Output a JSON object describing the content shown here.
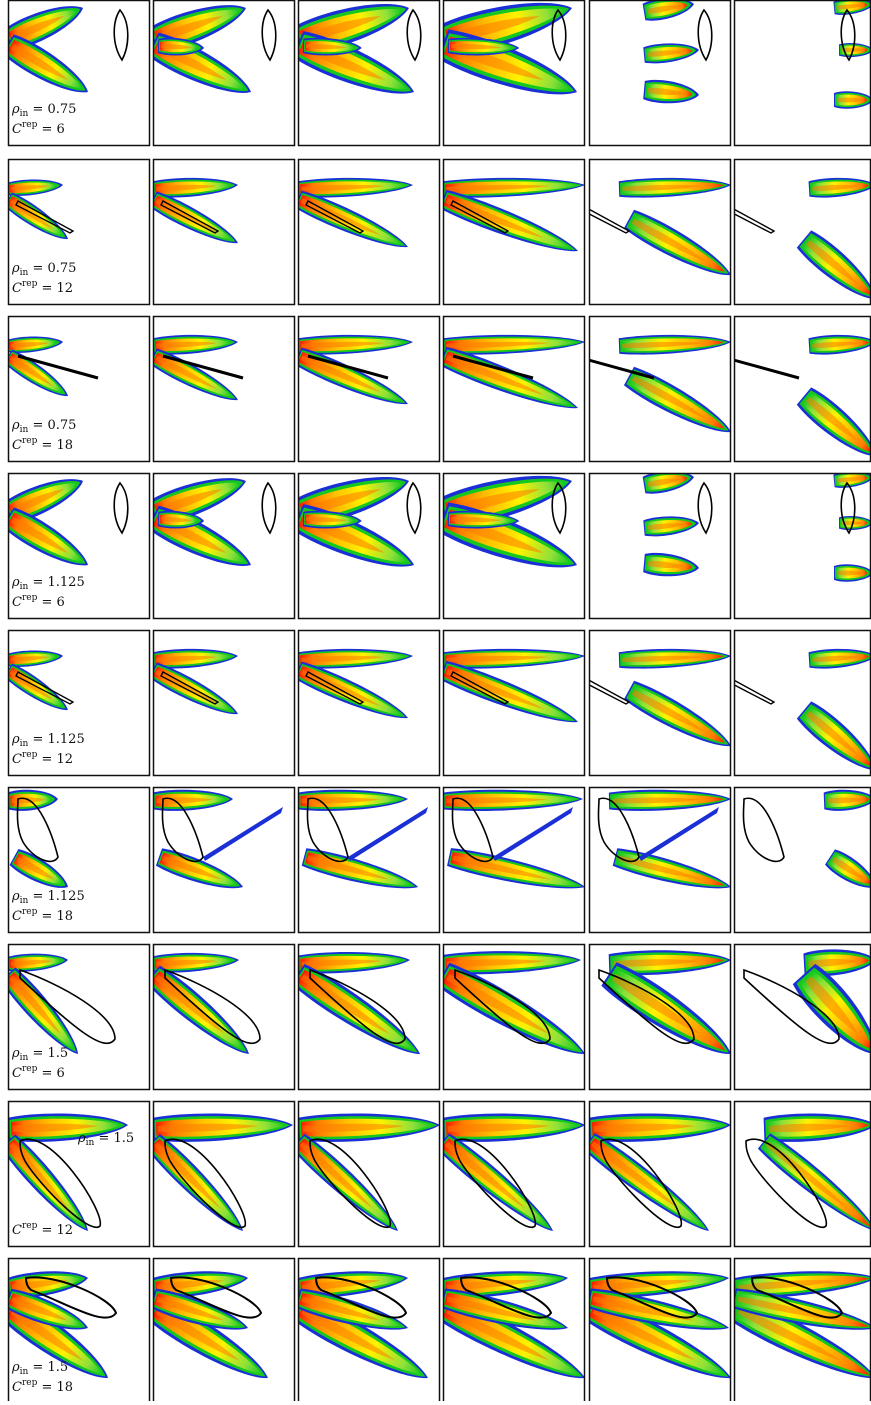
{
  "colors": {
    "field": [
      "#1a2fd6",
      "#14c81e",
      "#8ee03a",
      "#fff200",
      "#ffc000",
      "#ff7a00",
      "#ff1a00"
    ],
    "frame": "#111111",
    "obstacle": "#000000"
  },
  "rows": [
    {
      "rho_sym": "ρ",
      "rho_sub": "in",
      "rho_val": "= 0.75",
      "c_sym": "C",
      "c_sup": "rep",
      "c_val": "= 6"
    },
    {
      "rho_sym": "ρ",
      "rho_sub": "in",
      "rho_val": "= 0.75",
      "c_sym": "C",
      "c_sup": "rep",
      "c_val": "= 12"
    },
    {
      "rho_sym": "ρ",
      "rho_sub": "in",
      "rho_val": "= 0.75",
      "c_sym": "C",
      "c_sup": "rep",
      "c_val": "= 18"
    },
    {
      "rho_sym": "ρ",
      "rho_sub": "in",
      "rho_val": "= 1.125",
      "c_sym": "C",
      "c_sup": "rep",
      "c_val": "= 6"
    },
    {
      "rho_sym": "ρ",
      "rho_sub": "in",
      "rho_val": "= 1.125",
      "c_sym": "C",
      "c_sup": "rep",
      "c_val": "= 12"
    },
    {
      "rho_sym": "ρ",
      "rho_sub": "in",
      "rho_val": "= 1.125",
      "c_sym": "C",
      "c_sup": "rep",
      "c_val": "= 18"
    },
    {
      "rho_sym": "ρ",
      "rho_sub": "in",
      "rho_val": "= 1.5",
      "c_sym": "C",
      "c_sup": "rep",
      "c_val": "= 6"
    },
    {
      "rho_sym": "ρ",
      "rho_sub": "in",
      "rho_val": "= 1.5",
      "c_sym": "C",
      "c_sup": "rep",
      "c_val": "= 12"
    },
    {
      "rho_sym": "ρ",
      "rho_sub": "in",
      "rho_val": "= 1.5",
      "c_sym": "C",
      "c_sup": "rep",
      "c_val": "= 18"
    }
  ]
}
